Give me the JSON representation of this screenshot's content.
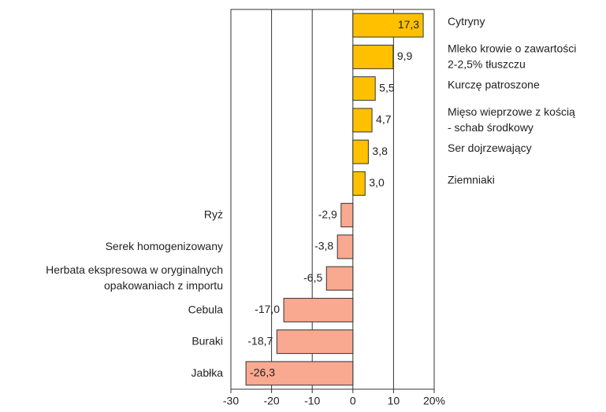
{
  "chart_data": {
    "type": "bar",
    "orientation": "horizontal",
    "categories": [
      [
        "Cytryny"
      ],
      [
        "Mleko krowie o zawartości",
        "2-2,5% tłuszczu"
      ],
      [
        "Kurczę patroszone"
      ],
      [
        "Mięso wieprzowe z kością",
        "- schab środkowy"
      ],
      [
        "Ser dojrzewający"
      ],
      [
        "Ziemniaki"
      ],
      [
        "Ryż"
      ],
      [
        "Serek homogenizowany"
      ],
      [
        "Herbata ekspresowa w oryginalnych",
        "opakowaniach z importu"
      ],
      [
        "Cebula"
      ],
      [
        "Buraki"
      ],
      [
        "Jabłka"
      ]
    ],
    "values": [
      17.3,
      9.9,
      5.5,
      4.7,
      3.8,
      3.0,
      -2.9,
      -3.8,
      -6.5,
      -17.0,
      -18.7,
      -26.3
    ],
    "value_labels": [
      "17,3",
      "9,9",
      "5,5",
      "4,7",
      "3,8",
      "3,0",
      "-2,9",
      "-3,8",
      "-6,5",
      "-17,0",
      "-18,7",
      "-26,3"
    ],
    "positive_color": "#ffc000",
    "negative_color": "#f8a98f",
    "xlim": [
      -30,
      20
    ],
    "xticks": [
      -30,
      -20,
      -10,
      0,
      10,
      {
        "value": 20,
        "label": "20%"
      }
    ],
    "grid": true
  }
}
